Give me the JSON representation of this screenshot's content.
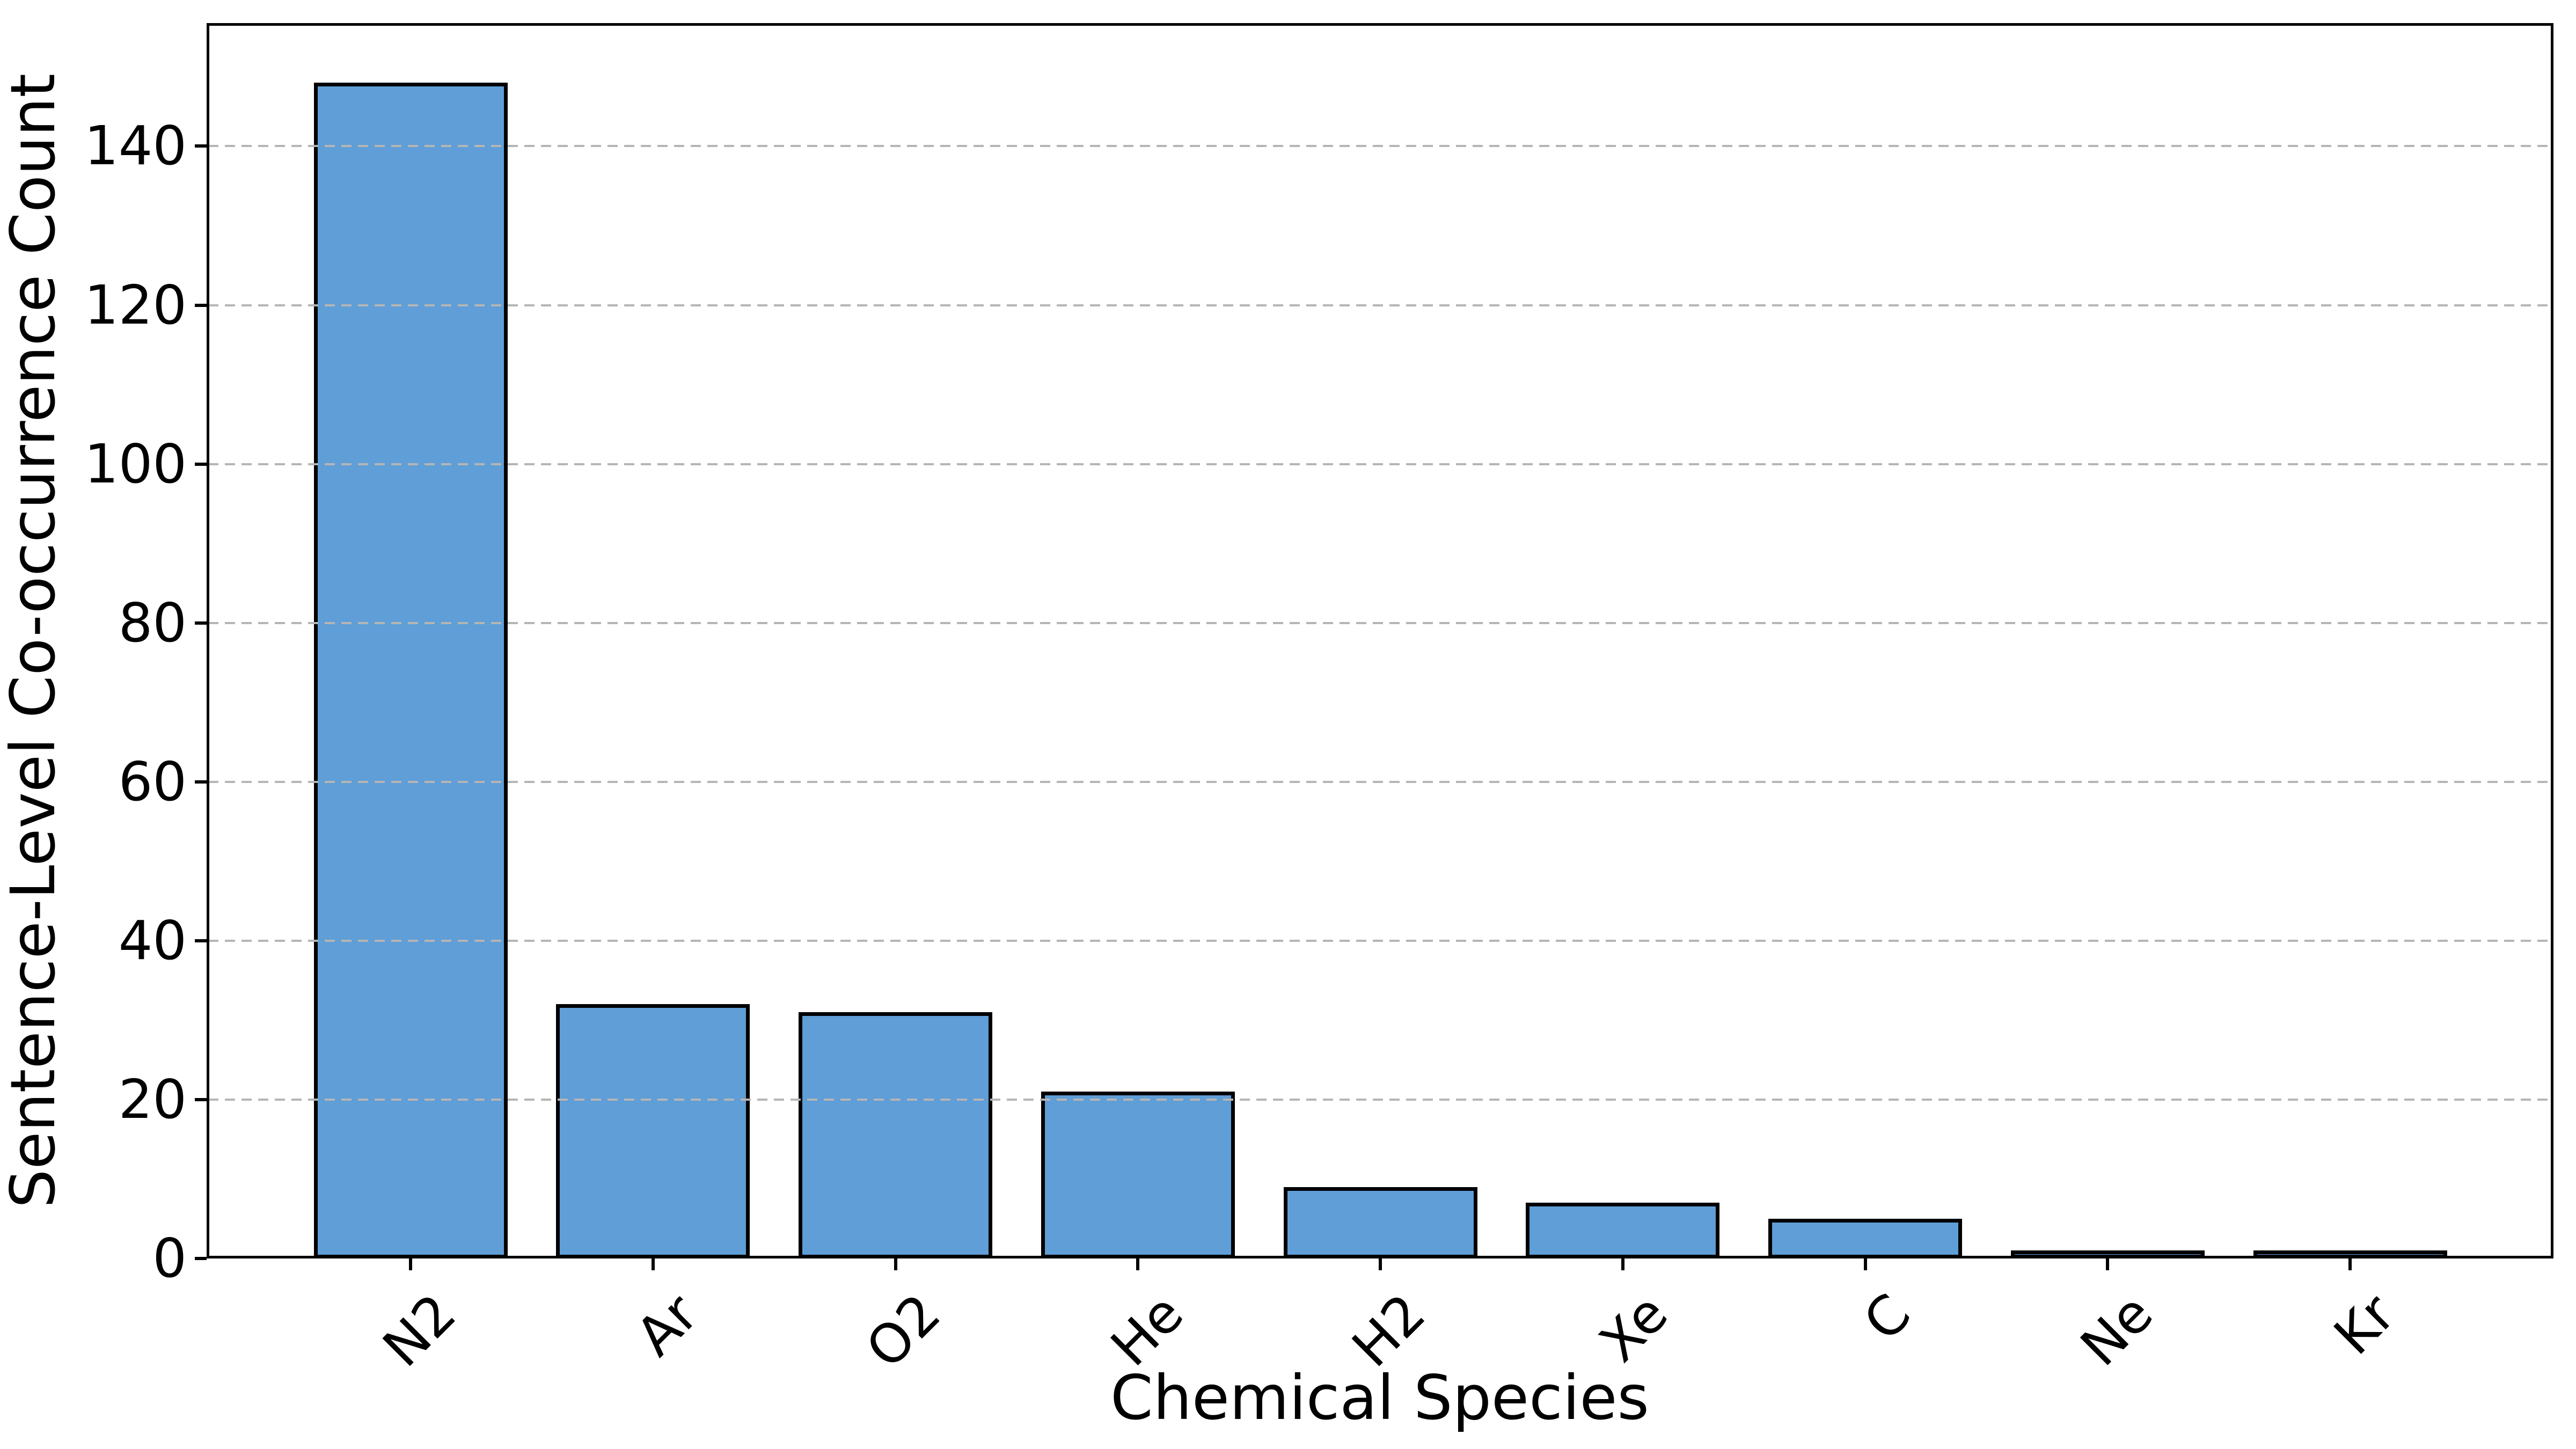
{
  "chart_data": {
    "type": "bar",
    "title": "",
    "categories": [
      "N2",
      "Ar",
      "O2",
      "He",
      "H2",
      "Xe",
      "C",
      "Ne",
      "Kr"
    ],
    "values": [
      148,
      32,
      31,
      21,
      9,
      7,
      5,
      1,
      1
    ],
    "xlabel": "Chemical Species",
    "ylabel": "Sentence-Level Co-occurrence Count",
    "yticks": [
      0,
      20,
      40,
      60,
      80,
      100,
      120,
      140
    ],
    "ylim": [
      0,
      155.5
    ],
    "xtick_rotation_deg": 45,
    "grid": "y-dashed",
    "legend_position": "none",
    "colors": {
      "bar_fill": "#5F9ED6",
      "bar_edge": "#000000",
      "grid_line": "#b5b5b5",
      "axis": "#000000",
      "text": "#000000",
      "background": "#ffffff"
    }
  }
}
